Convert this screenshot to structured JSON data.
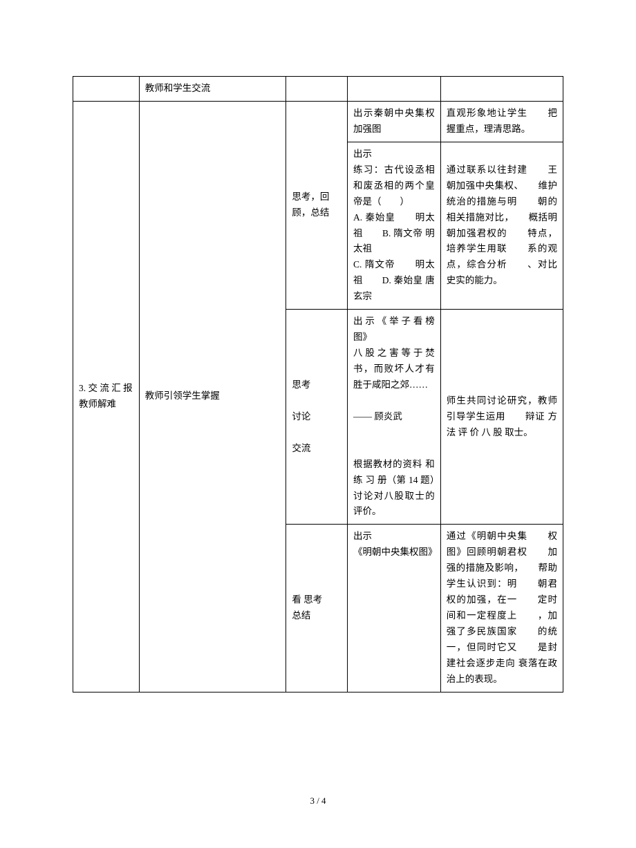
{
  "table": {
    "row1": {
      "c2": "教师和学生交流"
    },
    "row2_top": {
      "c4": "出示秦朝中央集权加强图",
      "c5": "直观形象地让学生　　把握重点，理清思路。"
    },
    "row2": {
      "c1": "3. 交 流 汇 报\n教师解难",
      "c2": "教师引领学生掌握",
      "sub1": {
        "c3": "思考，回顾，总结",
        "c4": "出示\n练习：古代设丞相和废丞相的两个皇帝是（　　）\nA. 秦始皇　　明太祖　　B. 隋文帝 明太祖\nC. 隋文帝　　明太祖　　D. 秦始皇 唐玄宗",
        "c5": "通过联系以往封建　　王朝加强中央集权、　　维护统治的措施与明　　朝的相关措施对比，　　概括明朝加强君权的　　特点，培养学生用联　　系的观点，综合分析　　、对比史实的能力。"
      },
      "sub2": {
        "c3": "思考\n\n讨论\n\n交流",
        "c4": "出示《举子看榜图》\n八股之害等于焚书，而败坏人才有胜于咸阳之郊……\n\n—— 顾炎武\n\n\n根据教材的资料 和 练 习 册（第 14 题）讨论对八股取士的评价。",
        "c5": "师生共同讨论研究，教师引导学生运用　　辩证 方 法 评 价 八 股 取士。"
      },
      "sub3": {
        "c3": "看 思考\n总结",
        "c4": "出示\n《明朝中央集权图》",
        "c5": "通过《明朝中央集　　权图》回顾明朝君权　　加强的措施及影响，　　帮助学生认识到：明　　朝君权的加强，在一　　定时间和一定程度上　　，加强了多民族国家　　的统一，但同时它又　　是封建社会逐步走向 衰落在政治上的表现。"
      }
    }
  },
  "footer": "3 / 4"
}
